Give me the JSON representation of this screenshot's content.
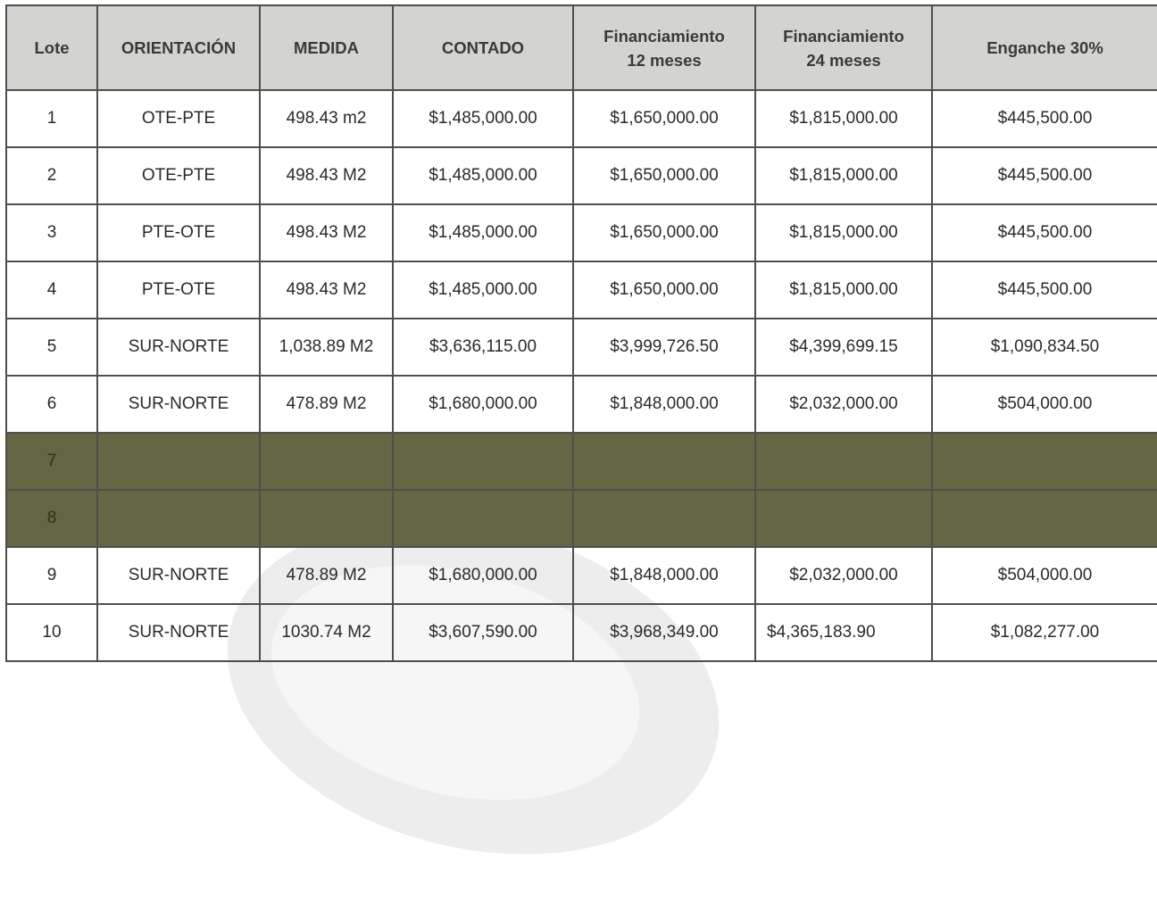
{
  "table": {
    "headers": {
      "lote": "Lote",
      "orientacion": "ORIENTACIÓN",
      "medida": "MEDIDA",
      "contado": "CONTADO",
      "fin12_line1": "Financiamiento",
      "fin12_line2": "12 meses",
      "fin24_line1": "Financiamiento",
      "fin24_line2": "24 meses",
      "enganche": "Enganche 30%"
    },
    "rows": [
      {
        "lote": "1",
        "orientacion": "OTE-PTE",
        "medida": "498.43 m2",
        "contado": "$1,485,000.00",
        "fin12": "$1,650,000.00",
        "fin24": "$1,815,000.00",
        "enganche": "$445,500.00"
      },
      {
        "lote": "2",
        "orientacion": "OTE-PTE",
        "medida": "498.43 M2",
        "contado": "$1,485,000.00",
        "fin12": "$1,650,000.00",
        "fin24": "$1,815,000.00",
        "enganche": "$445,500.00"
      },
      {
        "lote": "3",
        "orientacion": "PTE-OTE",
        "medida": "498.43 M2",
        "contado": "$1,485,000.00",
        "fin12": "$1,650,000.00",
        "fin24": "$1,815,000.00",
        "enganche": "$445,500.00"
      },
      {
        "lote": "4",
        "orientacion": "PTE-OTE",
        "medida": "498.43 M2",
        "contado": "$1,485,000.00",
        "fin12": "$1,650,000.00",
        "fin24": "$1,815,000.00",
        "enganche": "$445,500.00"
      },
      {
        "lote": "5",
        "orientacion": "SUR-NORTE",
        "medida": "1,038.89 M2",
        "contado": "$3,636,115.00",
        "fin12": "$3,999,726.50",
        "fin24": "$4,399,699.15",
        "enganche": "$1,090,834.50"
      },
      {
        "lote": "6",
        "orientacion": "SUR-NORTE",
        "medida": "478.89 M2",
        "contado": "$1,680,000.00",
        "fin12": "$1,848,000.00",
        "fin24": "$2,032,000.00",
        "enganche": "$504,000.00"
      },
      {
        "lote": "7",
        "orientacion": "",
        "medida": "",
        "contado": "",
        "fin12": "",
        "fin24": "",
        "enganche": ""
      },
      {
        "lote": "8",
        "orientacion": "",
        "medida": "",
        "contado": "",
        "fin12": "",
        "fin24": "",
        "enganche": ""
      },
      {
        "lote": "9",
        "orientacion": "SUR-NORTE",
        "medida": "478.89 M2",
        "contado": "$1,680,000.00",
        "fin12": "$1,848,000.00",
        "fin24": "$2,032,000.00",
        "enganche": "$504,000.00"
      },
      {
        "lote": "10",
        "orientacion": "SUR-NORTE",
        "medida": "1030.74 M2",
        "contado": "$3,607,590.00",
        "fin12": "$3,968,349.00",
        "fin24": "$4,365,183.90",
        "enganche": "$1,082,277.00"
      }
    ],
    "colors": {
      "header_bg": "#d3d3d0",
      "unavailable_row_bg": "#646644",
      "border": "#4e4e4e"
    }
  }
}
